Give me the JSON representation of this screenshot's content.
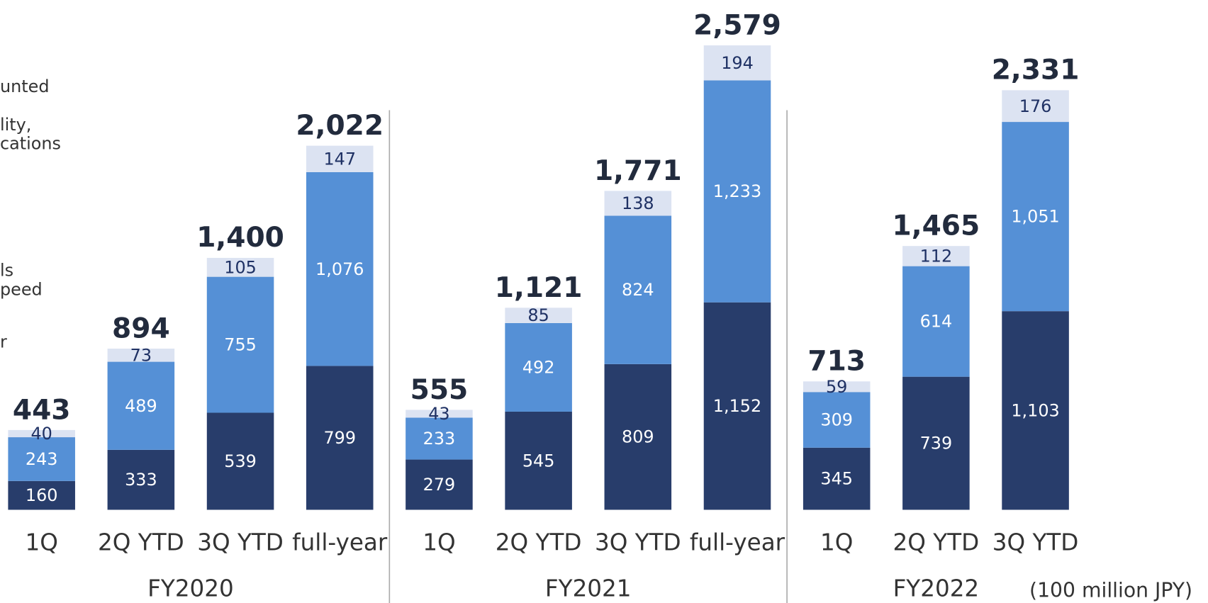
{
  "chart_data": {
    "type": "stacked_bar",
    "legend_fragments": [
      "unted",
      "lity,",
      "cations",
      "ls",
      "peed",
      "r"
    ],
    "unit_label": "(100 million JPY)",
    "categories": [
      "1Q",
      "2Q YTD",
      "3Q YTD",
      "full-year",
      "1Q",
      "2Q YTD",
      "3Q YTD",
      "full-year",
      "1Q",
      "2Q YTD",
      "3Q YTD"
    ],
    "groups": [
      {
        "label": "FY2020",
        "count": 4
      },
      {
        "label": "FY2021",
        "count": 4
      },
      {
        "label": "FY2022",
        "count": 3
      }
    ],
    "series": [
      {
        "color": "#283d6b",
        "label_color": "#ffffff",
        "values": [
          160,
          333,
          539,
          799,
          279,
          545,
          809,
          1152,
          345,
          739,
          1103
        ],
        "value_labels": [
          "160",
          "333",
          "539",
          "799",
          "279",
          "545",
          "809",
          "1,152",
          "345",
          "739",
          "1,103"
        ]
      },
      {
        "color": "#5590d6",
        "label_color": "#ffffff",
        "values": [
          243,
          489,
          755,
          1076,
          233,
          492,
          824,
          1233,
          309,
          614,
          1051
        ],
        "value_labels": [
          "243",
          "489",
          "755",
          "1,076",
          "233",
          "492",
          "824",
          "1,233",
          "309",
          "614",
          "1,051"
        ]
      },
      {
        "color": "#dce3f2",
        "label_color": "#1f3164",
        "values": [
          40,
          73,
          105,
          147,
          43,
          85,
          138,
          194,
          59,
          112,
          176
        ],
        "value_labels": [
          "40",
          "73",
          "105",
          "147",
          "43",
          "85",
          "138",
          "194",
          "59",
          "112",
          "176"
        ]
      }
    ],
    "totals": [
      443,
      894,
      1400,
      2022,
      555,
      1121,
      1771,
      2579,
      713,
      1465,
      2331
    ],
    "total_labels": [
      "443",
      "894",
      "1,400",
      "2,022",
      "555",
      "1,121",
      "1,771",
      "2,579",
      "713",
      "1,465",
      "2,331"
    ],
    "ylim": [
      0,
      2600
    ]
  }
}
